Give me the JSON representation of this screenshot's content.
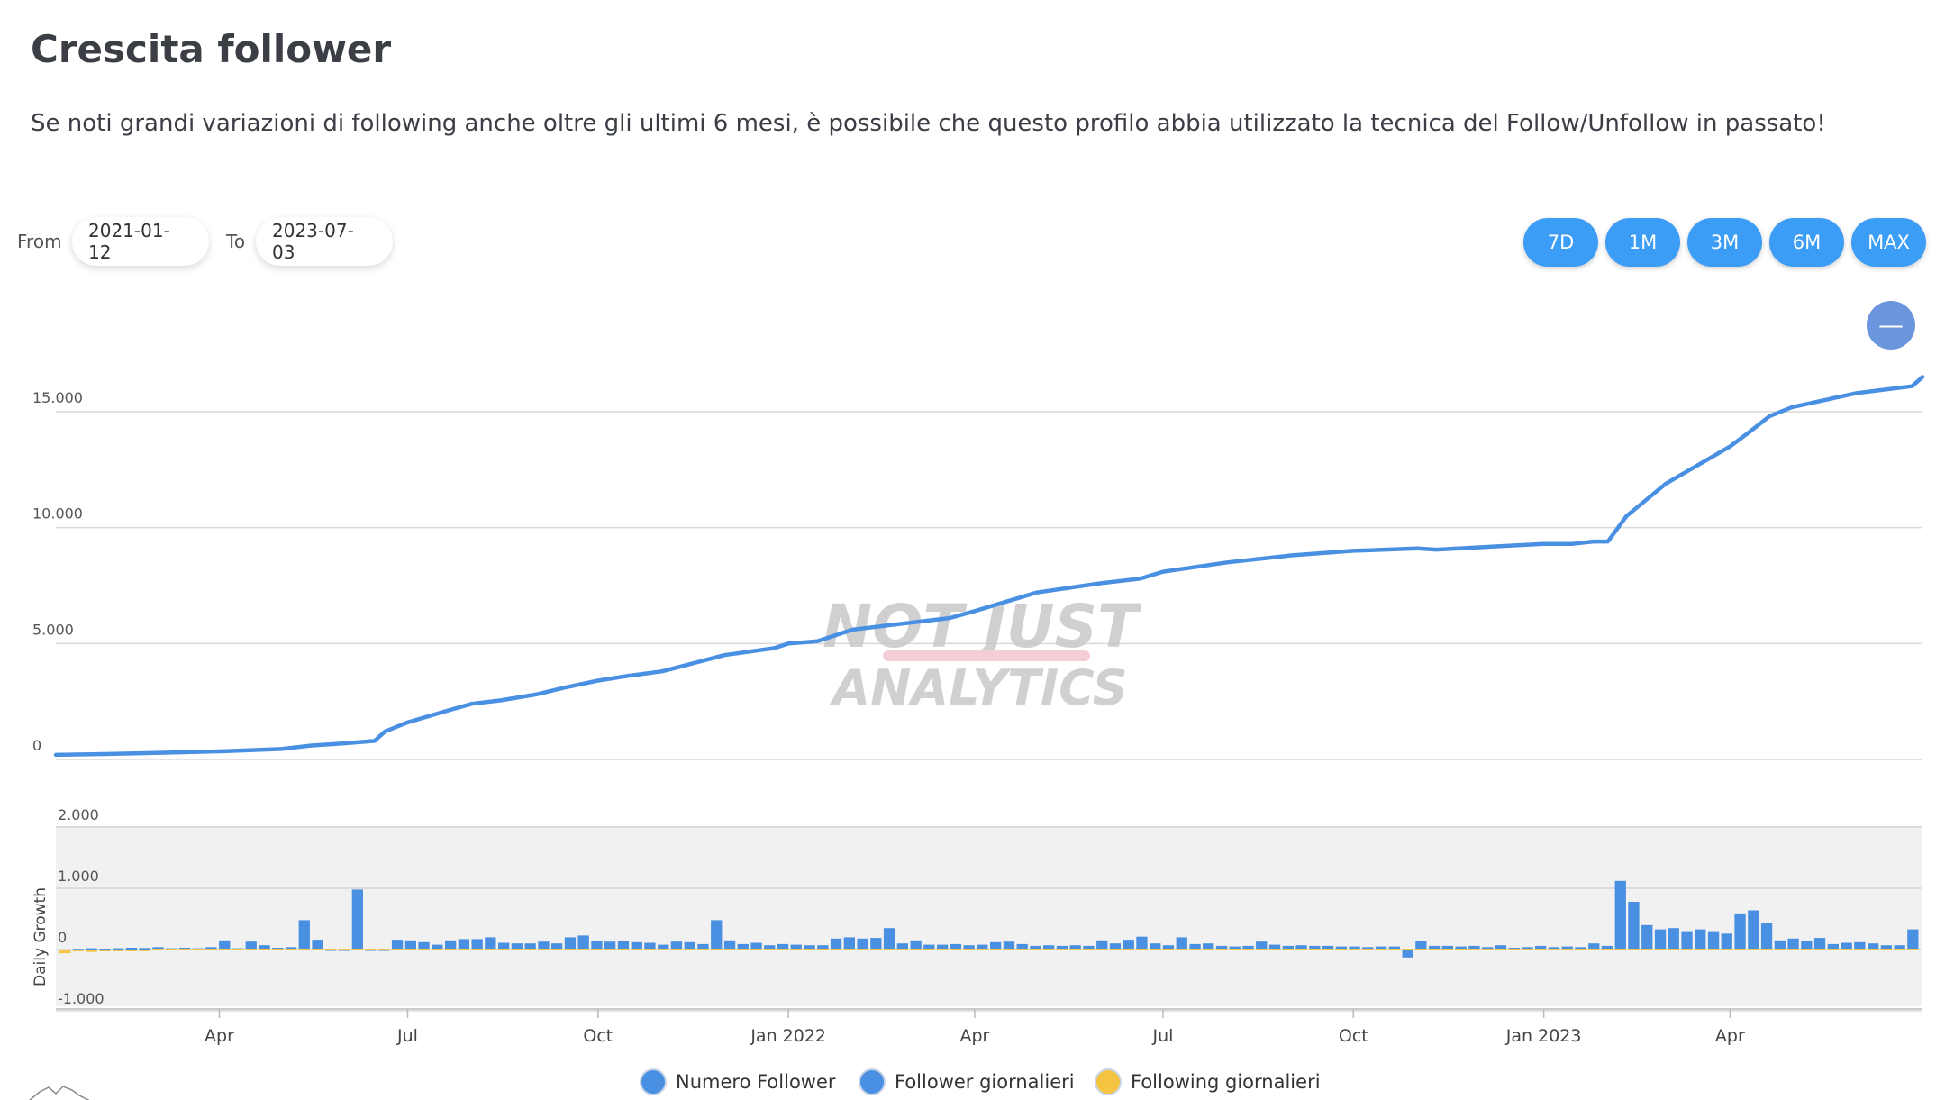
{
  "header": {
    "title": "Crescita follower",
    "subtitle": "Se noti grandi variazioni di following anche oltre gli ultimi 6 mesi, è possibile che questo profilo abbia utilizzato la tecnica del Follow/Unfollow in passato!"
  },
  "range": {
    "from_label": "From",
    "from_value": "2021-01-12",
    "to_label": "To",
    "to_value": "2023-07-03"
  },
  "zoom_buttons": [
    "7D",
    "1M",
    "3M",
    "6M",
    "MAX"
  ],
  "watermark": {
    "line1": "NOT JUST",
    "line2": "ANALYTICS"
  },
  "legend": {
    "items": [
      {
        "label": "Numero Follower",
        "color": "#4a90e2"
      },
      {
        "label": "Follower giornalieri",
        "color": "#4a90e2"
      },
      {
        "label": "Following giornalieri",
        "color": "#f5c542"
      }
    ]
  },
  "colors": {
    "line": "#4a90e2",
    "bar_follower": "#4a90e2",
    "bar_following": "#f5c542",
    "accent": "#3b9df5"
  },
  "chart_data": [
    {
      "type": "line",
      "series": [
        {
          "name": "Numero Follower"
        }
      ],
      "ylim": [
        0,
        17500
      ],
      "yticks": [
        "0",
        "5.000",
        "10.000",
        "15.000"
      ],
      "xticks": [
        "Apr",
        "Jul",
        "Oct",
        "Jan 2022",
        "Apr",
        "Jul",
        "Oct",
        "Jan 2023",
        "Apr"
      ],
      "x": [
        "2021-01-12",
        "2021-02-01",
        "2021-03-01",
        "2021-04-01",
        "2021-05-01",
        "2021-05-15",
        "2021-06-01",
        "2021-06-15",
        "2021-06-20",
        "2021-07-01",
        "2021-07-20",
        "2021-08-01",
        "2021-08-15",
        "2021-09-01",
        "2021-09-15",
        "2021-10-01",
        "2021-10-15",
        "2021-11-01",
        "2021-12-01",
        "2021-12-25",
        "2022-01-01",
        "2022-01-15",
        "2022-02-01",
        "2022-03-01",
        "2022-03-20",
        "2022-04-01",
        "2022-05-01",
        "2022-06-01",
        "2022-06-20",
        "2022-07-01",
        "2022-08-01",
        "2022-09-01",
        "2022-10-01",
        "2022-11-01",
        "2022-11-10",
        "2022-12-01",
        "2023-01-01",
        "2023-01-15",
        "2023-01-25",
        "2023-02-01",
        "2023-02-10",
        "2023-03-01",
        "2023-04-01",
        "2023-04-10",
        "2023-04-20",
        "2023-05-01",
        "2023-06-01",
        "2023-06-28",
        "2023-07-03"
      ],
      "values": [
        200,
        230,
        280,
        350,
        450,
        600,
        700,
        800,
        1200,
        1600,
        2100,
        2400,
        2550,
        2800,
        3100,
        3400,
        3600,
        3800,
        4500,
        4800,
        5000,
        5100,
        5600,
        5900,
        6100,
        6400,
        7200,
        7600,
        7800,
        8100,
        8500,
        8800,
        9000,
        9100,
        9050,
        9150,
        9300,
        9300,
        9400,
        9400,
        10500,
        11900,
        13500,
        14100,
        14800,
        15200,
        15800,
        16100,
        16500
      ]
    },
    {
      "type": "bar",
      "ylabel": "Daily Growth",
      "ylim": [
        -1000,
        2000
      ],
      "yticks": [
        "-1.000",
        "0",
        "1.000",
        "2.000"
      ],
      "series": [
        {
          "name": "Follower giornalieri",
          "values": [
            -50,
            10,
            20,
            15,
            20,
            30,
            25,
            40,
            20,
            30,
            20,
            40,
            150,
            20,
            130,
            70,
            30,
            40,
            480,
            160,
            0,
            0,
            980,
            0,
            0,
            160,
            150,
            120,
            80,
            150,
            170,
            170,
            200,
            110,
            100,
            100,
            130,
            100,
            200,
            230,
            140,
            130,
            140,
            120,
            110,
            80,
            130,
            120,
            90,
            480,
            150,
            90,
            110,
            70,
            90,
            80,
            70,
            70,
            180,
            200,
            180,
            190,
            350,
            100,
            150,
            80,
            80,
            90,
            70,
            80,
            120,
            130,
            90,
            60,
            70,
            60,
            70,
            60,
            150,
            100,
            160,
            210,
            100,
            70,
            200,
            90,
            100,
            60,
            50,
            60,
            130,
            80,
            60,
            70,
            60,
            60,
            50,
            50,
            40,
            50,
            50,
            -130,
            140,
            60,
            60,
            50,
            60,
            40,
            70,
            30,
            40,
            60,
            40,
            50,
            40,
            100,
            60,
            1120,
            780,
            400,
            330,
            350,
            300,
            330,
            300,
            260,
            590,
            640,
            430,
            150,
            180,
            140,
            190,
            90,
            110,
            120,
            100,
            70,
            70,
            330
          ]
        },
        {
          "name": "Following giornalieri",
          "values": [
            -60,
            -20,
            -40,
            -10,
            -10,
            -10,
            -10,
            0,
            0,
            0,
            0,
            0,
            0,
            0,
            0,
            0,
            0,
            0,
            0,
            0,
            0,
            0,
            0,
            0,
            0,
            0,
            0,
            0,
            0,
            0,
            0,
            0,
            0,
            0,
            0,
            0,
            0,
            0,
            0,
            0,
            0,
            0,
            0,
            0,
            0,
            0,
            0,
            0,
            0,
            0,
            0,
            0,
            0,
            0,
            0,
            0,
            0,
            0,
            0,
            0,
            0,
            0,
            0,
            0,
            0,
            0,
            0,
            0,
            0,
            0,
            0,
            0,
            0,
            0,
            0,
            0,
            0,
            0,
            0,
            0,
            0,
            0,
            0,
            0,
            0,
            0,
            0,
            0,
            0,
            0,
            0,
            0,
            0,
            0,
            0,
            0,
            0,
            0,
            0,
            0,
            0,
            0,
            0,
            0,
            0,
            0,
            0,
            0,
            0,
            0,
            0,
            0,
            0,
            0,
            0,
            0,
            0,
            0,
            0,
            0,
            0,
            0,
            0,
            0,
            0,
            0,
            0,
            0,
            0,
            0,
            0,
            0,
            0,
            0,
            0,
            0,
            0,
            0,
            0,
            0,
            0,
            0,
            0,
            0
          ]
        }
      ]
    }
  ]
}
